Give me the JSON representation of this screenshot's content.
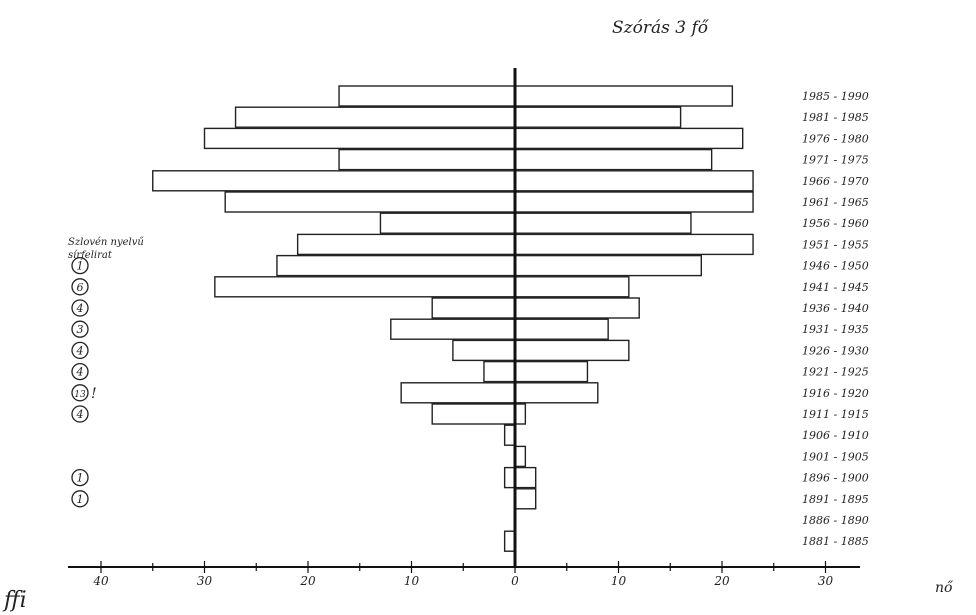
{
  "chart_data": {
    "type": "bar",
    "title": "Szórás 3 fő",
    "orientation": "horizontal-population-pyramid",
    "categories": [
      "1985 - 1990",
      "1981 - 1985",
      "1976 - 1980",
      "1971 - 1975",
      "1966 - 1970",
      "1961 - 1965",
      "1956 - 1960",
      "1951 - 1955",
      "1946 - 1950",
      "1941 - 1945",
      "1936 - 1940",
      "1931 - 1935",
      "1926 - 1930",
      "1921 - 1925",
      "1916 - 1920",
      "1911 - 1915",
      "1906 - 1910",
      "1901 - 1905",
      "1896 - 1900",
      "1891 - 1895",
      "1886 - 1890",
      "1881 - 1885"
    ],
    "series": [
      {
        "name": "ffi",
        "side": "left",
        "values": [
          17,
          27,
          30,
          17,
          35,
          28,
          13,
          21,
          23,
          29,
          8,
          12,
          6,
          3,
          11,
          8,
          1,
          0,
          1,
          0,
          0,
          1
        ]
      },
      {
        "name": "nő",
        "side": "right",
        "values": [
          21,
          16,
          22,
          19,
          23,
          23,
          17,
          23,
          18,
          11,
          12,
          9,
          11,
          7,
          8,
          1,
          0,
          1,
          2,
          2,
          0,
          0
        ]
      }
    ],
    "x_ticks_left": [
      "40",
      "30",
      "20",
      "10",
      "0"
    ],
    "x_ticks_right": [
      "10",
      "20",
      "30"
    ],
    "xlim_left": [
      0,
      40
    ],
    "xlim_right": [
      0,
      30
    ],
    "annotation_heading": [
      "Szlovén nyelvű",
      "sírfelirat"
    ],
    "annotations": [
      {
        "row": "1946 - 1950",
        "value": "1"
      },
      {
        "row": "1941 - 1945",
        "value": "6"
      },
      {
        "row": "1936 - 1940",
        "value": "4"
      },
      {
        "row": "1931 - 1935",
        "value": "3"
      },
      {
        "row": "1926 - 1930",
        "value": "4"
      },
      {
        "row": "1921 - 1925",
        "value": "4"
      },
      {
        "row": "1916 - 1920",
        "value": "13",
        "mark": "!"
      },
      {
        "row": "1911 - 1915",
        "value": "4"
      },
      {
        "row": "1896 - 1900",
        "value": "1"
      },
      {
        "row": "1891 - 1895",
        "value": "1"
      }
    ],
    "grid": false
  }
}
